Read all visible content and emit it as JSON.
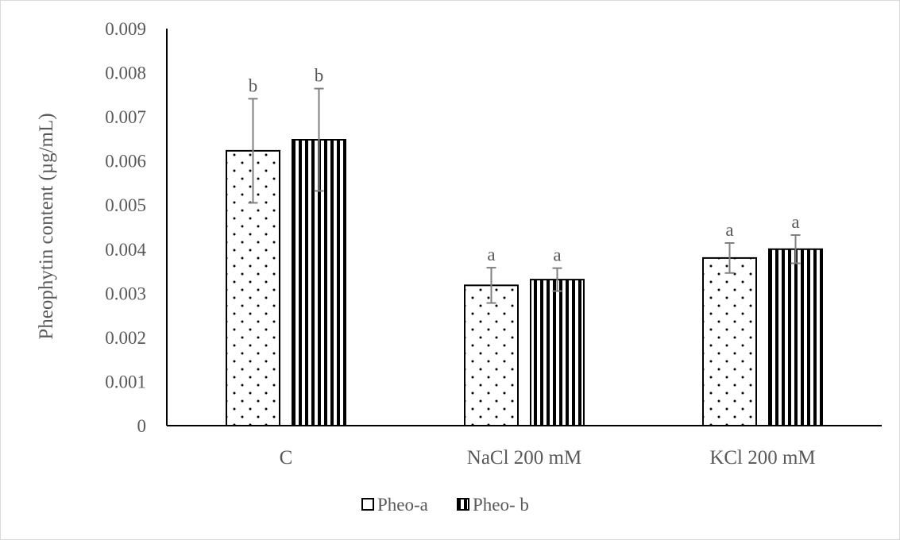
{
  "chart_data": {
    "type": "bar",
    "ylabel": "Pheophytin content (µg/mL)",
    "xlabel": "",
    "categories": [
      "C",
      "NaCl 200 mM",
      "KCl 200 mM"
    ],
    "ylim": [
      0,
      0.009
    ],
    "yticks": [
      0,
      0.001,
      0.002,
      0.003,
      0.004,
      0.005,
      0.006,
      0.007,
      0.008,
      0.009
    ],
    "ytick_labels": [
      "0",
      "0.001",
      "0.002",
      "0.003",
      "0.004",
      "0.005",
      "0.006",
      "0.007",
      "0.008",
      "0.009"
    ],
    "grid": false,
    "legend_position": "bottom",
    "series": [
      {
        "name": "Pheo-a",
        "pattern": "dots",
        "values": [
          0.00623,
          0.00318,
          0.0038
        ],
        "errors": [
          0.00118,
          0.0004,
          0.00034
        ],
        "significance": [
          "b",
          "a",
          "a"
        ]
      },
      {
        "name": "Pheo- b",
        "pattern": "vertical-stripes",
        "values": [
          0.00648,
          0.00331,
          0.004
        ],
        "errors": [
          0.00116,
          0.00026,
          0.00032
        ],
        "significance": [
          "b",
          "a",
          "a"
        ]
      }
    ],
    "colors": {
      "bar_outline": "#000000",
      "axis": "#000000",
      "error_bar": "#808080",
      "text": "#595959"
    }
  }
}
